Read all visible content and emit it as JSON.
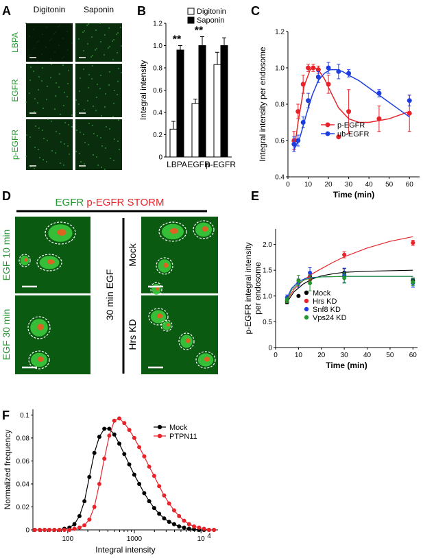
{
  "panels": {
    "A": {
      "label": "A",
      "columns": [
        "Digitonin",
        "Saponin"
      ],
      "rows": [
        "LBPA",
        "EGFR",
        "p-EGFR"
      ]
    },
    "D": {
      "label": "D",
      "title_green": "EGFR",
      "title_red": "p-EGFR STORM",
      "left_labels": [
        "EGF 10 min",
        "EGF 30 min"
      ],
      "middle_label": "30 min EGF",
      "right_labels": [
        "Mock",
        "Hrs KD"
      ]
    }
  },
  "colors": {
    "red": "#e8232a",
    "blue": "#1e3ee0",
    "green": "#22962f",
    "black": "#000000",
    "micrograph": "#0b5a12"
  },
  "chart_data": [
    {
      "panel": "B",
      "type": "bar",
      "categories": [
        "LBPA",
        "EGFR",
        "p-EGFR"
      ],
      "series": [
        {
          "name": "Digitonin",
          "values": [
            0.25,
            0.48,
            0.83
          ],
          "errors": [
            0.07,
            0.04,
            0.11
          ]
        },
        {
          "name": "Saponin",
          "values": [
            0.96,
            1.0,
            1.0
          ],
          "errors": [
            0.04,
            0.08,
            0.07
          ]
        }
      ],
      "ylabel": "Integral intensity",
      "ylim": [
        0,
        1.2
      ],
      "yticks": [
        "0",
        "0.2",
        "0.4",
        "0.6",
        "0.8",
        "1.0",
        "1.2"
      ],
      "annotations": [
        "**",
        "**"
      ],
      "legend": "top-right"
    },
    {
      "panel": "C",
      "type": "scatter",
      "xlabel": "Time (min)",
      "ylabel": "Integral intensity per endosome",
      "xlim": [
        0,
        65
      ],
      "ylim": [
        0.4,
        1.2
      ],
      "xticks": [
        "0",
        "10",
        "20",
        "30",
        "40",
        "50",
        "60"
      ],
      "yticks": [
        "0.4",
        "0.6",
        "0.8",
        "1.0",
        "1.2"
      ],
      "legend": "bottom-right",
      "series": [
        {
          "name": "p-EGFR",
          "x": [
            3,
            5,
            7.5,
            10,
            12.5,
            15,
            20,
            25,
            30,
            45,
            60
          ],
          "y": [
            0.6,
            0.76,
            0.91,
            1.0,
            1.0,
            0.99,
            0.91,
            0.62,
            0.76,
            0.72,
            0.75
          ],
          "err": [
            0.05,
            0.04,
            0.05,
            0.02,
            0.02,
            0.02,
            0.05,
            0.0,
            0.12,
            0.07,
            0.1
          ],
          "fit_x": [
            3,
            5,
            8,
            11,
            13,
            15,
            18,
            21,
            25,
            30,
            35,
            40,
            45,
            50,
            55,
            60
          ],
          "fit_y": [
            0.54,
            0.7,
            0.9,
            0.99,
            1.0,
            0.99,
            0.94,
            0.87,
            0.78,
            0.72,
            0.7,
            0.7,
            0.71,
            0.72,
            0.74,
            0.76
          ]
        },
        {
          "name": "ub-EGFR",
          "x": [
            3,
            5,
            7.5,
            10,
            15,
            20,
            25,
            30,
            45,
            60
          ],
          "y": [
            0.58,
            0.6,
            0.7,
            0.82,
            0.95,
            1.0,
            0.98,
            0.97,
            0.86,
            0.82
          ],
          "err": [
            0.04,
            0.03,
            0.03,
            0.04,
            0.03,
            0.03,
            0.04,
            0.02,
            0.02,
            0.03
          ],
          "fit_x": [
            3,
            6,
            9,
            12,
            15,
            18,
            21,
            24,
            27,
            30,
            35,
            40,
            45,
            50,
            55,
            60
          ],
          "fit_y": [
            0.55,
            0.62,
            0.74,
            0.85,
            0.93,
            0.97,
            0.99,
            0.99,
            0.98,
            0.96,
            0.93,
            0.89,
            0.85,
            0.81,
            0.77,
            0.73
          ]
        }
      ]
    },
    {
      "panel": "E",
      "type": "scatter",
      "xlabel": "Time (min)",
      "ylabel": "p-EGFR integral intensity per endosome",
      "xlim": [
        0,
        62
      ],
      "ylim": [
        0,
        2.3
      ],
      "xticks": [
        "0",
        "10",
        "20",
        "30",
        "40",
        "50",
        "60"
      ],
      "yticks": [
        "0",
        "0.5",
        "1.0",
        "1.5",
        "2.0"
      ],
      "legend": "bottom-right",
      "series": [
        {
          "name": "Mock",
          "color": "black",
          "x": [
            5,
            10,
            15,
            30,
            60
          ],
          "y": [
            0.88,
            1.0,
            1.38,
            1.45,
            1.3
          ],
          "err": [
            0.03,
            0.02,
            0.08,
            0.08,
            0.05
          ],
          "fit_x": [
            5,
            8,
            12,
            16,
            20,
            25,
            30,
            40,
            50,
            60
          ],
          "fit_y": [
            0.88,
            1.08,
            1.23,
            1.33,
            1.39,
            1.43,
            1.46,
            1.48,
            1.49,
            1.5
          ]
        },
        {
          "name": "Hrs KD",
          "color": "red",
          "x": [
            5,
            10,
            15,
            30,
            60
          ],
          "y": [
            0.92,
            1.25,
            1.35,
            1.8,
            2.03
          ],
          "err": [
            0.04,
            0.08,
            0.06,
            0.06,
            0.05
          ],
          "fit_x": [
            5,
            8,
            12,
            16,
            20,
            25,
            30,
            40,
            50,
            60
          ],
          "fit_y": [
            0.92,
            1.13,
            1.3,
            1.43,
            1.53,
            1.65,
            1.76,
            1.93,
            2.06,
            2.15
          ]
        },
        {
          "name": "Snf8 KD",
          "color": "blue",
          "x": [
            5,
            10,
            15,
            30,
            60
          ],
          "y": [
            0.97,
            1.25,
            1.45,
            1.4,
            1.25
          ],
          "err": [
            0.05,
            0.08,
            0.1,
            0.14,
            0.08
          ],
          "fit_x": [
            5,
            7,
            10,
            13,
            16,
            20,
            30,
            40,
            50,
            60
          ],
          "fit_y": [
            0.97,
            1.15,
            1.28,
            1.34,
            1.36,
            1.37,
            1.38,
            1.38,
            1.38,
            1.38
          ]
        },
        {
          "name": "Vps24 KD",
          "color": "green",
          "x": [
            5,
            10,
            15,
            30,
            60
          ],
          "y": [
            0.92,
            1.3,
            1.25,
            1.35,
            1.27
          ],
          "err": [
            0.05,
            0.1,
            0.15,
            0.1,
            0.07
          ],
          "fit_x": [
            5,
            7,
            10,
            13,
            16,
            20,
            30,
            40,
            50,
            60
          ],
          "fit_y": [
            0.92,
            1.12,
            1.25,
            1.32,
            1.35,
            1.37,
            1.38,
            1.38,
            1.38,
            1.38
          ]
        }
      ]
    },
    {
      "panel": "F",
      "type": "line",
      "xscale": "log",
      "xlabel": "Integral intensity",
      "ylabel": "Normalized frequency",
      "xlim": [
        30,
        18000
      ],
      "ylim": [
        0,
        0.105
      ],
      "xtick_labels": [
        "100",
        "1000",
        "10"
      ],
      "xtick_superscript": "4",
      "yticks": [
        "0",
        "0.02",
        "0.04",
        "0.06",
        "0.08",
        "0.1"
      ],
      "legend": "top-right",
      "series": [
        {
          "name": "Mock",
          "color": "black",
          "x": [
            32,
            38,
            45,
            53,
            63,
            75,
            89,
            106,
            126,
            150,
            178,
            211,
            251,
            298,
            354,
            420,
            500,
            594,
            706,
            838,
            996,
            1183,
            1405,
            1669,
            1983,
            2355,
            2798,
            3323,
            3948,
            4690,
            5571,
            6618,
            7862,
            9339,
            11094,
            13179,
            15656
          ],
          "y": [
            0,
            0,
            0,
            0,
            0,
            0,
            0.001,
            0.002,
            0.005,
            0.012,
            0.025,
            0.046,
            0.067,
            0.081,
            0.088,
            0.088,
            0.083,
            0.075,
            0.066,
            0.057,
            0.048,
            0.04,
            0.032,
            0.025,
            0.019,
            0.014,
            0.01,
            0.007,
            0.005,
            0.003,
            0.002,
            0.001,
            0.0005,
            0,
            0,
            0,
            0
          ]
        },
        {
          "name": "PTPN11",
          "color": "red",
          "x": [
            32,
            38,
            45,
            53,
            63,
            75,
            89,
            106,
            126,
            150,
            178,
            211,
            251,
            298,
            354,
            420,
            500,
            594,
            706,
            838,
            996,
            1183,
            1405,
            1669,
            1983,
            2355,
            2798,
            3323,
            3948,
            4690,
            5571,
            6618,
            7862,
            9339,
            11094,
            13179,
            15656
          ],
          "y": [
            0,
            0,
            0,
            0,
            0,
            0,
            0,
            0,
            0.001,
            0.002,
            0.004,
            0.009,
            0.02,
            0.04,
            0.062,
            0.082,
            0.095,
            0.097,
            0.093,
            0.087,
            0.08,
            0.072,
            0.064,
            0.055,
            0.047,
            0.038,
            0.03,
            0.023,
            0.017,
            0.012,
            0.008,
            0.005,
            0.003,
            0.002,
            0.001,
            0,
            0
          ]
        }
      ]
    }
  ]
}
